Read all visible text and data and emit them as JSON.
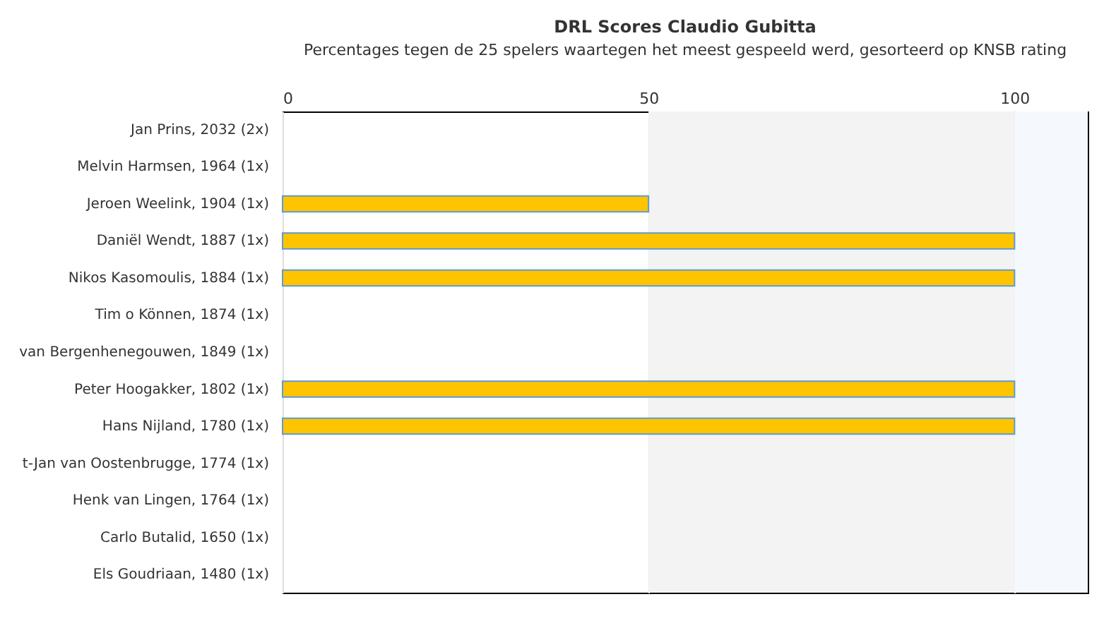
{
  "chart_data": {
    "type": "bar",
    "orientation": "horizontal",
    "title": "DRL Scores Claudio Gubitta",
    "subtitle": "Percentages tegen de 25 spelers waartegen het meest gespeeld werd, gesorteerd op KNSB rating",
    "categories": [
      "Jan Prins, 2032 (2x)",
      "Melvin Harmsen, 1964 (1x)",
      "Jeroen Weelink, 1904 (1x)",
      "Daniël Wendt, 1887 (1x)",
      "Nikos Kasomoulis, 1884 (1x)",
      "Tim o Können, 1874 (1x)",
      "van Bergenhenegouwen, 1849 (1x)",
      "Peter Hoogakker, 1802 (1x)",
      "Hans Nijland, 1780 (1x)",
      "t-Jan van Oostenbrugge, 1774 (1x)",
      "Henk van Lingen, 1764 (1x)",
      "Carlo Butalid, 1650 (1x)",
      "Els Goudriaan, 1480 (1x)"
    ],
    "values": [
      0,
      0,
      50,
      100,
      100,
      0,
      0,
      100,
      100,
      0,
      0,
      0,
      0
    ],
    "color": "#ffc400",
    "xlim": [
      0,
      110
    ],
    "xticks": [
      0,
      50,
      100
    ],
    "grid": "x",
    "bands": [
      {
        "axis": "x",
        "from": 50,
        "to": 100,
        "color": "#f3f3f3"
      },
      {
        "axis": "x",
        "from": 100,
        "to": 110,
        "color": "#f5f9fd"
      }
    ]
  }
}
